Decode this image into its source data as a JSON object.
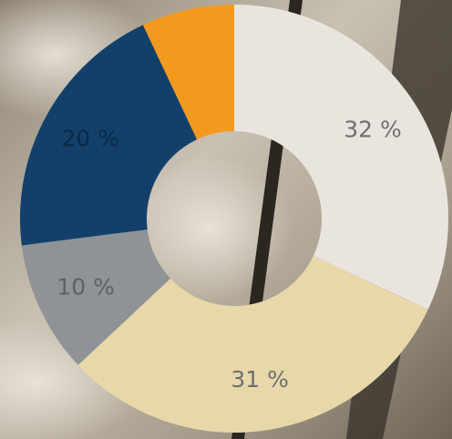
{
  "chart_data": {
    "type": "donut",
    "values": [
      32,
      31,
      10,
      20,
      7
    ],
    "value_labels": [
      "32 %",
      "31 %",
      "10 %",
      "20 %",
      null
    ],
    "colors": [
      "#e9e4de",
      "#e8d7a9",
      "#8f9396",
      "#13406b",
      "#f39a1e"
    ],
    "label_colors": [
      "#6f6f6f",
      "#6f6f6f",
      "#5e6266",
      "#0b2a47",
      null
    ]
  }
}
